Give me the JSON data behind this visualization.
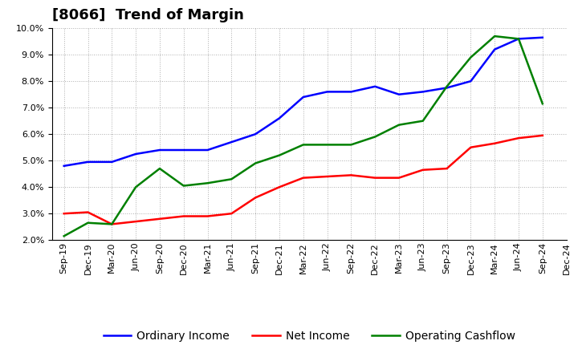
{
  "title": "[8066]  Trend of Margin",
  "ylim": [
    0.02,
    0.1
  ],
  "yticks": [
    0.02,
    0.03,
    0.04,
    0.05,
    0.06,
    0.07,
    0.08,
    0.09,
    0.1
  ],
  "x_labels": [
    "Sep-19",
    "Dec-19",
    "Mar-20",
    "Jun-20",
    "Sep-20",
    "Dec-20",
    "Mar-21",
    "Jun-21",
    "Sep-21",
    "Dec-21",
    "Mar-22",
    "Jun-22",
    "Sep-22",
    "Dec-22",
    "Mar-23",
    "Jun-23",
    "Sep-23",
    "Dec-23",
    "Mar-24",
    "Jun-24",
    "Sep-24",
    "Dec-24"
  ],
  "ordinary_income": [
    0.048,
    0.0495,
    0.0495,
    0.0525,
    0.054,
    0.054,
    0.054,
    0.057,
    0.06,
    0.066,
    0.074,
    0.076,
    0.076,
    0.078,
    0.075,
    0.076,
    0.0775,
    0.08,
    0.092,
    0.096,
    0.0965,
    null
  ],
  "net_income": [
    0.03,
    0.0305,
    0.026,
    0.027,
    0.028,
    0.029,
    0.029,
    0.03,
    0.036,
    0.04,
    0.0435,
    0.044,
    0.0445,
    0.0435,
    0.0435,
    0.0465,
    0.047,
    0.055,
    0.0565,
    0.0585,
    0.0595,
    null
  ],
  "operating_cashflow": [
    0.0215,
    0.0265,
    0.026,
    0.04,
    0.047,
    0.0405,
    0.0415,
    0.043,
    0.049,
    0.052,
    0.056,
    0.056,
    0.056,
    0.059,
    0.0635,
    0.065,
    0.078,
    0.089,
    0.097,
    0.096,
    0.0715,
    null
  ],
  "line_color_blue": "#0000FF",
  "line_color_red": "#FF0000",
  "line_color_green": "#008000",
  "background_color": "#FFFFFF",
  "grid_color": "#999999",
  "title_fontsize": 13,
  "tick_fontsize": 8,
  "legend_fontsize": 10,
  "linewidth": 1.8,
  "legend_labels": [
    "Ordinary Income",
    "Net Income",
    "Operating Cashflow"
  ]
}
